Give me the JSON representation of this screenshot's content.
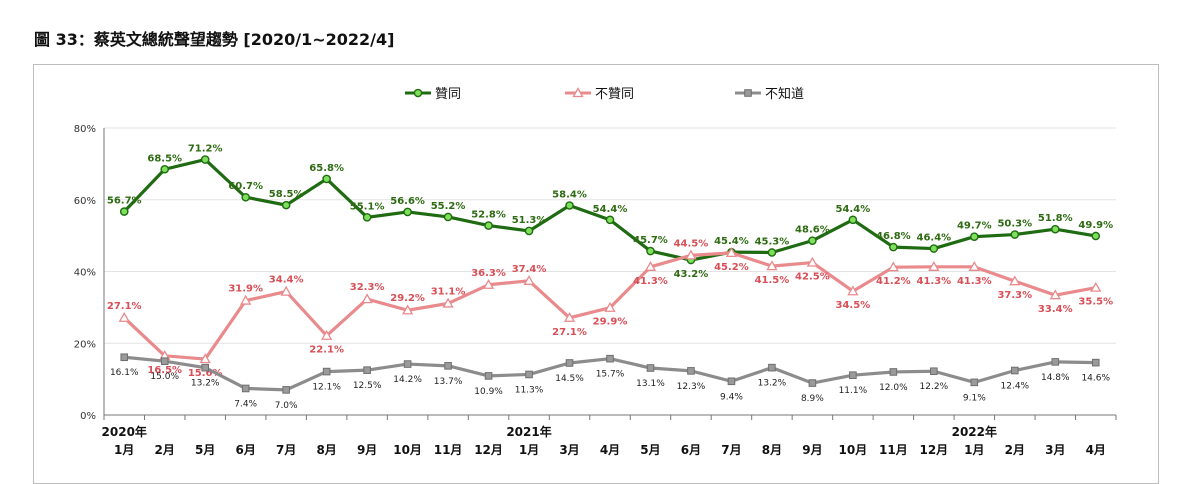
{
  "title": "圖 33：蔡英文總統聲望趨勢  [2020/1~2022/4]",
  "chart_data": {
    "type": "line",
    "categories": [
      "1月",
      "2月",
      "5月",
      "6月",
      "7月",
      "8月",
      "9月",
      "10月",
      "11月",
      "12月",
      "1月",
      "3月",
      "4月",
      "5月",
      "6月",
      "7月",
      "8月",
      "9月",
      "10月",
      "11月",
      "12月",
      "1月",
      "2月",
      "3月",
      "4月"
    ],
    "year_labels": [
      {
        "index": 0,
        "text": "2020年"
      },
      {
        "index": 10,
        "text": "2021年"
      },
      {
        "index": 21,
        "text": "2022年"
      }
    ],
    "ylim": [
      0,
      80
    ],
    "yticks": [
      0,
      20,
      40,
      60,
      80
    ],
    "ytick_labels": [
      "0%",
      "20%",
      "40%",
      "60%",
      "80%"
    ],
    "grid": true,
    "legend_position": "top",
    "series": [
      {
        "name": "贊同",
        "color": "#1f6b12",
        "marker": "circle",
        "values": [
          56.7,
          68.5,
          71.2,
          60.7,
          58.5,
          65.8,
          55.1,
          56.6,
          55.2,
          52.8,
          51.3,
          58.4,
          54.4,
          45.7,
          43.2,
          45.4,
          45.3,
          48.6,
          54.4,
          46.8,
          46.4,
          49.7,
          50.3,
          51.8,
          49.9
        ],
        "labels": [
          "56.7%",
          "68.5%",
          "71.2%",
          "60.7%",
          "58.5%",
          "65.8%",
          "55.1%",
          "56.6%",
          "55.2%",
          "52.8%",
          "51.3%",
          "58.4%",
          "54.4%",
          "45.7%",
          "43.2%",
          "45.4%",
          "45.3%",
          "48.6%",
          "54.4%",
          "46.8%",
          "46.4%",
          "49.7%",
          "50.3%",
          "51.8%",
          "49.9%"
        ]
      },
      {
        "name": "不贊同",
        "color": "#e98a8d",
        "marker": "triangle",
        "values": [
          27.1,
          16.5,
          15.6,
          31.9,
          34.4,
          22.1,
          32.3,
          29.2,
          31.1,
          36.3,
          37.4,
          27.1,
          29.9,
          41.3,
          44.5,
          45.2,
          41.5,
          42.5,
          34.5,
          41.2,
          41.3,
          41.3,
          37.3,
          33.4,
          35.5
        ],
        "labels": [
          "27.1%",
          "16.5%",
          "15.6%",
          "31.9%",
          "34.4%",
          "22.1%",
          "32.3%",
          "29.2%",
          "31.1%",
          "36.3%",
          "37.4%",
          "27.1%",
          "29.9%",
          "41.3%",
          "44.5%",
          "45.2%",
          "41.5%",
          "42.5%",
          "34.5%",
          "41.2%",
          "41.3%",
          "41.3%",
          "37.3%",
          "33.4%",
          "35.5%"
        ]
      },
      {
        "name": "不知道",
        "color": "#8c8c8c",
        "marker": "square",
        "values": [
          16.1,
          15.0,
          13.2,
          7.4,
          7.0,
          12.1,
          12.5,
          14.2,
          13.7,
          10.9,
          11.3,
          14.5,
          15.7,
          13.1,
          12.3,
          9.4,
          13.2,
          8.9,
          11.1,
          12.0,
          12.2,
          9.1,
          12.4,
          14.8,
          14.6
        ],
        "labels": [
          "16.1%",
          "15.0%",
          "13.2%",
          "7.4%",
          "7.0%",
          "12.1%",
          "12.5%",
          "14.2%",
          "13.7%",
          "10.9%",
          "11.3%",
          "14.5%",
          "15.7%",
          "13.1%",
          "12.3%",
          "9.4%",
          "13.2%",
          "8.9%",
          "11.1%",
          "12.0%",
          "12.2%",
          "9.1%",
          "12.4%",
          "14.8%",
          "14.6%"
        ]
      }
    ]
  }
}
